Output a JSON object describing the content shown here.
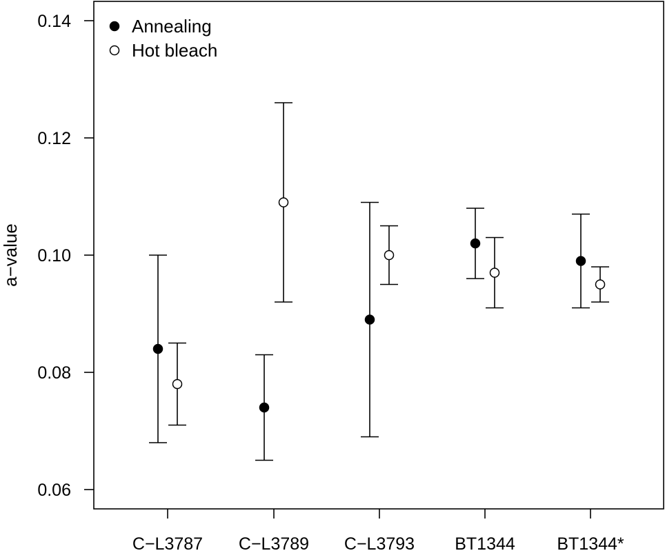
{
  "chart_data": {
    "type": "scatter",
    "title": "",
    "xlabel": "",
    "ylabel": "a−value",
    "ylim": [
      0.0565,
      0.14
    ],
    "yticks": [
      "0.06",
      "0.08",
      "0.10",
      "0.12",
      "0.14"
    ],
    "categories": [
      "C−L3787",
      "C−L3789",
      "C−L3793",
      "BT1344",
      "BT1344*"
    ],
    "grid": false,
    "legend_position": "top-left",
    "series": [
      {
        "name": "Annealing",
        "marker": "filled-circle",
        "color": "#000000",
        "values": [
          0.084,
          0.074,
          0.089,
          0.102,
          0.099
        ],
        "lower": [
          0.068,
          0.065,
          0.069,
          0.096,
          0.091
        ],
        "upper": [
          0.1,
          0.083,
          0.109,
          0.108,
          0.107
        ]
      },
      {
        "name": "Hot bleach",
        "marker": "open-circle",
        "color": "#000000",
        "values": [
          0.078,
          0.109,
          0.1,
          0.097,
          0.095
        ],
        "lower": [
          0.071,
          0.092,
          0.095,
          0.091,
          0.092
        ],
        "upper": [
          0.085,
          0.126,
          0.105,
          0.103,
          0.098
        ]
      }
    ]
  }
}
